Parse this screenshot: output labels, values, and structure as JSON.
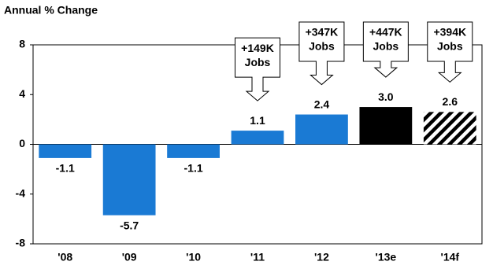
{
  "chart_data": {
    "type": "bar",
    "axis_title": "Annual % Change",
    "categories": [
      "'08",
      "'09",
      "'10",
      "'11",
      "'12",
      "'13e",
      "'14f"
    ],
    "values": [
      -1.1,
      -5.7,
      -1.1,
      1.1,
      2.4,
      3.0,
      2.6
    ],
    "value_labels": [
      "-1.1",
      "-5.7",
      "-1.1",
      "1.1",
      "2.4",
      "3.0",
      "2.6"
    ],
    "colors": [
      "#1a7ad4",
      "#1a7ad4",
      "#1a7ad4",
      "#1a7ad4",
      "#1a7ad4",
      "#000000",
      "#000000"
    ],
    "bar_styles": [
      "solid",
      "solid",
      "solid",
      "solid",
      "solid",
      "solid",
      "hatched"
    ],
    "ylim": [
      -8,
      8
    ],
    "yticks": [
      -8,
      -4,
      0,
      4,
      8
    ],
    "grid": false,
    "annotations": [
      {
        "category": "'11",
        "lines": [
          "+149K",
          "Jobs"
        ]
      },
      {
        "category": "'12",
        "lines": [
          "+347K",
          "Jobs"
        ]
      },
      {
        "category": "'13e",
        "lines": [
          "+447K",
          "Jobs"
        ]
      },
      {
        "category": "'14f",
        "lines": [
          "+394K",
          "Jobs"
        ]
      }
    ]
  }
}
